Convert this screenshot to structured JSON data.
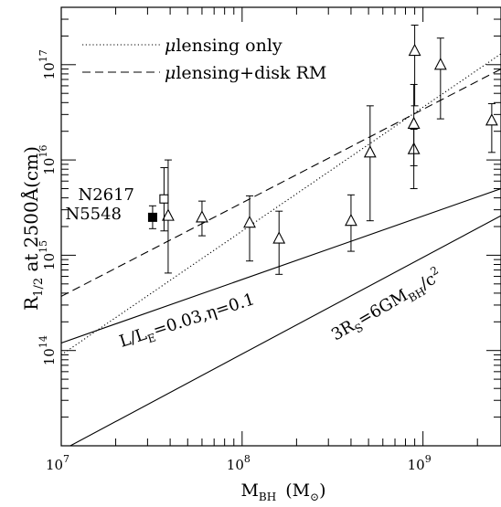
{
  "chart_data": {
    "type": "scatter",
    "xlabel": {
      "main": "M",
      "sub": "BH",
      "unit_open": "(M",
      "unit_sub": "⊙",
      "unit_close": ")"
    },
    "ylabel": {
      "main": "R",
      "sub": "1/2",
      "rest": " at 2500Å(cm)"
    },
    "x_scale": "log",
    "y_scale": "log",
    "xlim": [
      10000000,
      2700000000
    ],
    "ylim": [
      10000000000000.0,
      4e+17
    ],
    "x_ticks": [
      {
        "value": 10000000,
        "base": "10",
        "exp": "7"
      },
      {
        "value": 100000000,
        "base": "10",
        "exp": "8"
      },
      {
        "value": 1000000000,
        "base": "10",
        "exp": "9"
      }
    ],
    "y_ticks": [
      {
        "value": 100000000000000.0,
        "base": "10",
        "exp": "14"
      },
      {
        "value": 1000000000000000.0,
        "base": "10",
        "exp": "15"
      },
      {
        "value": 1e+16,
        "base": "10",
        "exp": "16"
      },
      {
        "value": 1e+17,
        "base": "10",
        "exp": "17"
      }
    ],
    "legend": {
      "position": "top-left",
      "entries": [
        {
          "style": "dotted",
          "prefix": "μ",
          "text": "lensing only"
        },
        {
          "style": "dashed",
          "prefix": "μ",
          "text": "lensing+disk RM"
        }
      ]
    },
    "series": [
      {
        "marker": "triangle",
        "points": [
          {
            "x": 39000000,
            "y": 2600000000000000.0,
            "ylow": 650000000000000.0,
            "yhigh": 1e+16
          },
          {
            "x": 60000000,
            "y": 2500000000000000.0,
            "ylow": 1600000000000000.0,
            "yhigh": 3700000000000000.0
          },
          {
            "x": 110000000,
            "y": 2200000000000000.0,
            "ylow": 870000000000000.0,
            "yhigh": 4200000000000000.0
          },
          {
            "x": 160000000,
            "y": 1500000000000000.0,
            "ylow": 630000000000000.0,
            "yhigh": 2900000000000000.0
          },
          {
            "x": 400000000,
            "y": 2300000000000000.0,
            "ylow": 1100000000000000.0,
            "yhigh": 4300000000000000.0
          },
          {
            "x": 510000000,
            "y": 1.2e+16,
            "ylow": 2300000000000000.0,
            "yhigh": 3.7e+16
          },
          {
            "x": 890000000,
            "y": 1.3e+16,
            "ylow": 5000000000000000.0,
            "yhigh": 2.1e+16
          },
          {
            "x": 890000000,
            "y": 2.4e+16,
            "ylow": 8700000000000000.0,
            "yhigh": 6.2e+16
          },
          {
            "x": 900000000,
            "y": 1.4e+17,
            "ylow": 3.7e+16,
            "yhigh": 2.6e+17
          },
          {
            "x": 1250000000,
            "y": 1e+17,
            "ylow": 2.7e+16,
            "yhigh": 1.9e+17
          },
          {
            "x": 2400000000,
            "y": 2.6e+16,
            "ylow": 1.2e+16,
            "yhigh": 3.9e+16
          }
        ]
      },
      {
        "name": "N2617",
        "marker": "open-square",
        "points": [
          {
            "x": 37000000,
            "y": 3900000000000000.0,
            "ylow": 1800000000000000.0,
            "yhigh": 8300000000000000.0
          }
        ]
      },
      {
        "name": "N5548",
        "marker": "filled-square",
        "points": [
          {
            "x": 32000000,
            "y": 2500000000000000.0,
            "ylow": 1900000000000000.0,
            "yhigh": 3300000000000000.0
          }
        ]
      }
    ],
    "lines": [
      {
        "style": "dotted",
        "x": [
          10000000,
          2700000000
        ],
        "y": [
          90000000000000.0,
          1.3e+17
        ]
      },
      {
        "style": "dashed",
        "x": [
          10000000,
          2700000000
        ],
        "y": [
          370000000000000.0,
          9e+16
        ]
      },
      {
        "style": "solid",
        "x": [
          10000000,
          2700000000
        ],
        "y": [
          120000000000000.0,
          5000000000000000.0
        ]
      },
      {
        "style": "solid",
        "x": [
          10000000,
          2700000000
        ],
        "y": [
          8900000000000.0,
          2600000000000000.0
        ]
      }
    ],
    "annotations": [
      {
        "key": "eddington",
        "parts": [
          "L/L",
          "E",
          "=0.03,η=0.1"
        ]
      },
      {
        "key": "schwarzschild",
        "parts": [
          "3R",
          "S",
          "=6GM",
          "BH",
          "/c",
          "2"
        ]
      }
    ]
  }
}
